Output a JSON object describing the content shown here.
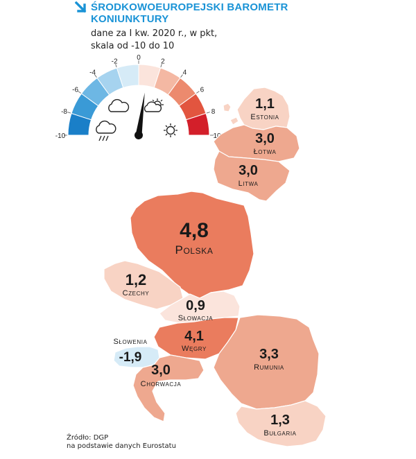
{
  "header": {
    "title_line1": "ŚRODKOWOEUROPEJSKI BAROMETR",
    "title_line2": "KONIUNKTURY",
    "subtitle_line1": "dane za I kw. 2020 r., w pkt,",
    "subtitle_line2": "skala od -10 do 10"
  },
  "gauge": {
    "ticks": [
      "-10",
      "-8",
      "-6",
      "-4",
      "-2",
      "0",
      "2",
      "4",
      "6",
      "8",
      "10"
    ],
    "colors": [
      "#1a7fc8",
      "#3a9ad6",
      "#6db7e4",
      "#a6d3ef",
      "#d6ebf7",
      "#fbe4dc",
      "#f4b8a3",
      "#ec8a6e",
      "#e2553f",
      "#d31f2a"
    ],
    "needle_value": 0.9,
    "icons": [
      "storm-cloud-icon",
      "cloud-icon",
      "sun-cloud-icon",
      "sun-icon"
    ]
  },
  "countries": [
    {
      "id": "estonia",
      "name": "Estonia",
      "value": "1,1"
    },
    {
      "id": "latvia",
      "name": "Łotwa",
      "value": "3,0"
    },
    {
      "id": "lithuania",
      "name": "Litwa",
      "value": "3,0"
    },
    {
      "id": "poland",
      "name": "Polska",
      "value": "4,8"
    },
    {
      "id": "czechia",
      "name": "Czechy",
      "value": "1,2"
    },
    {
      "id": "slovakia",
      "name": "Słowacja",
      "value": "0,9"
    },
    {
      "id": "hungary",
      "name": "Węgry",
      "value": "4,1"
    },
    {
      "id": "slovenia",
      "name": "Słowenia",
      "value": "-1,9"
    },
    {
      "id": "croatia",
      "name": "Chorwacja",
      "value": "3,0"
    },
    {
      "id": "romania",
      "name": "Rumunia",
      "value": "3,3"
    },
    {
      "id": "bulgaria",
      "name": "Bułgaria",
      "value": "1,3"
    }
  ],
  "source": {
    "line1": "Źródło: DGP",
    "line2": "na podstawie danych Eurostatu"
  }
}
